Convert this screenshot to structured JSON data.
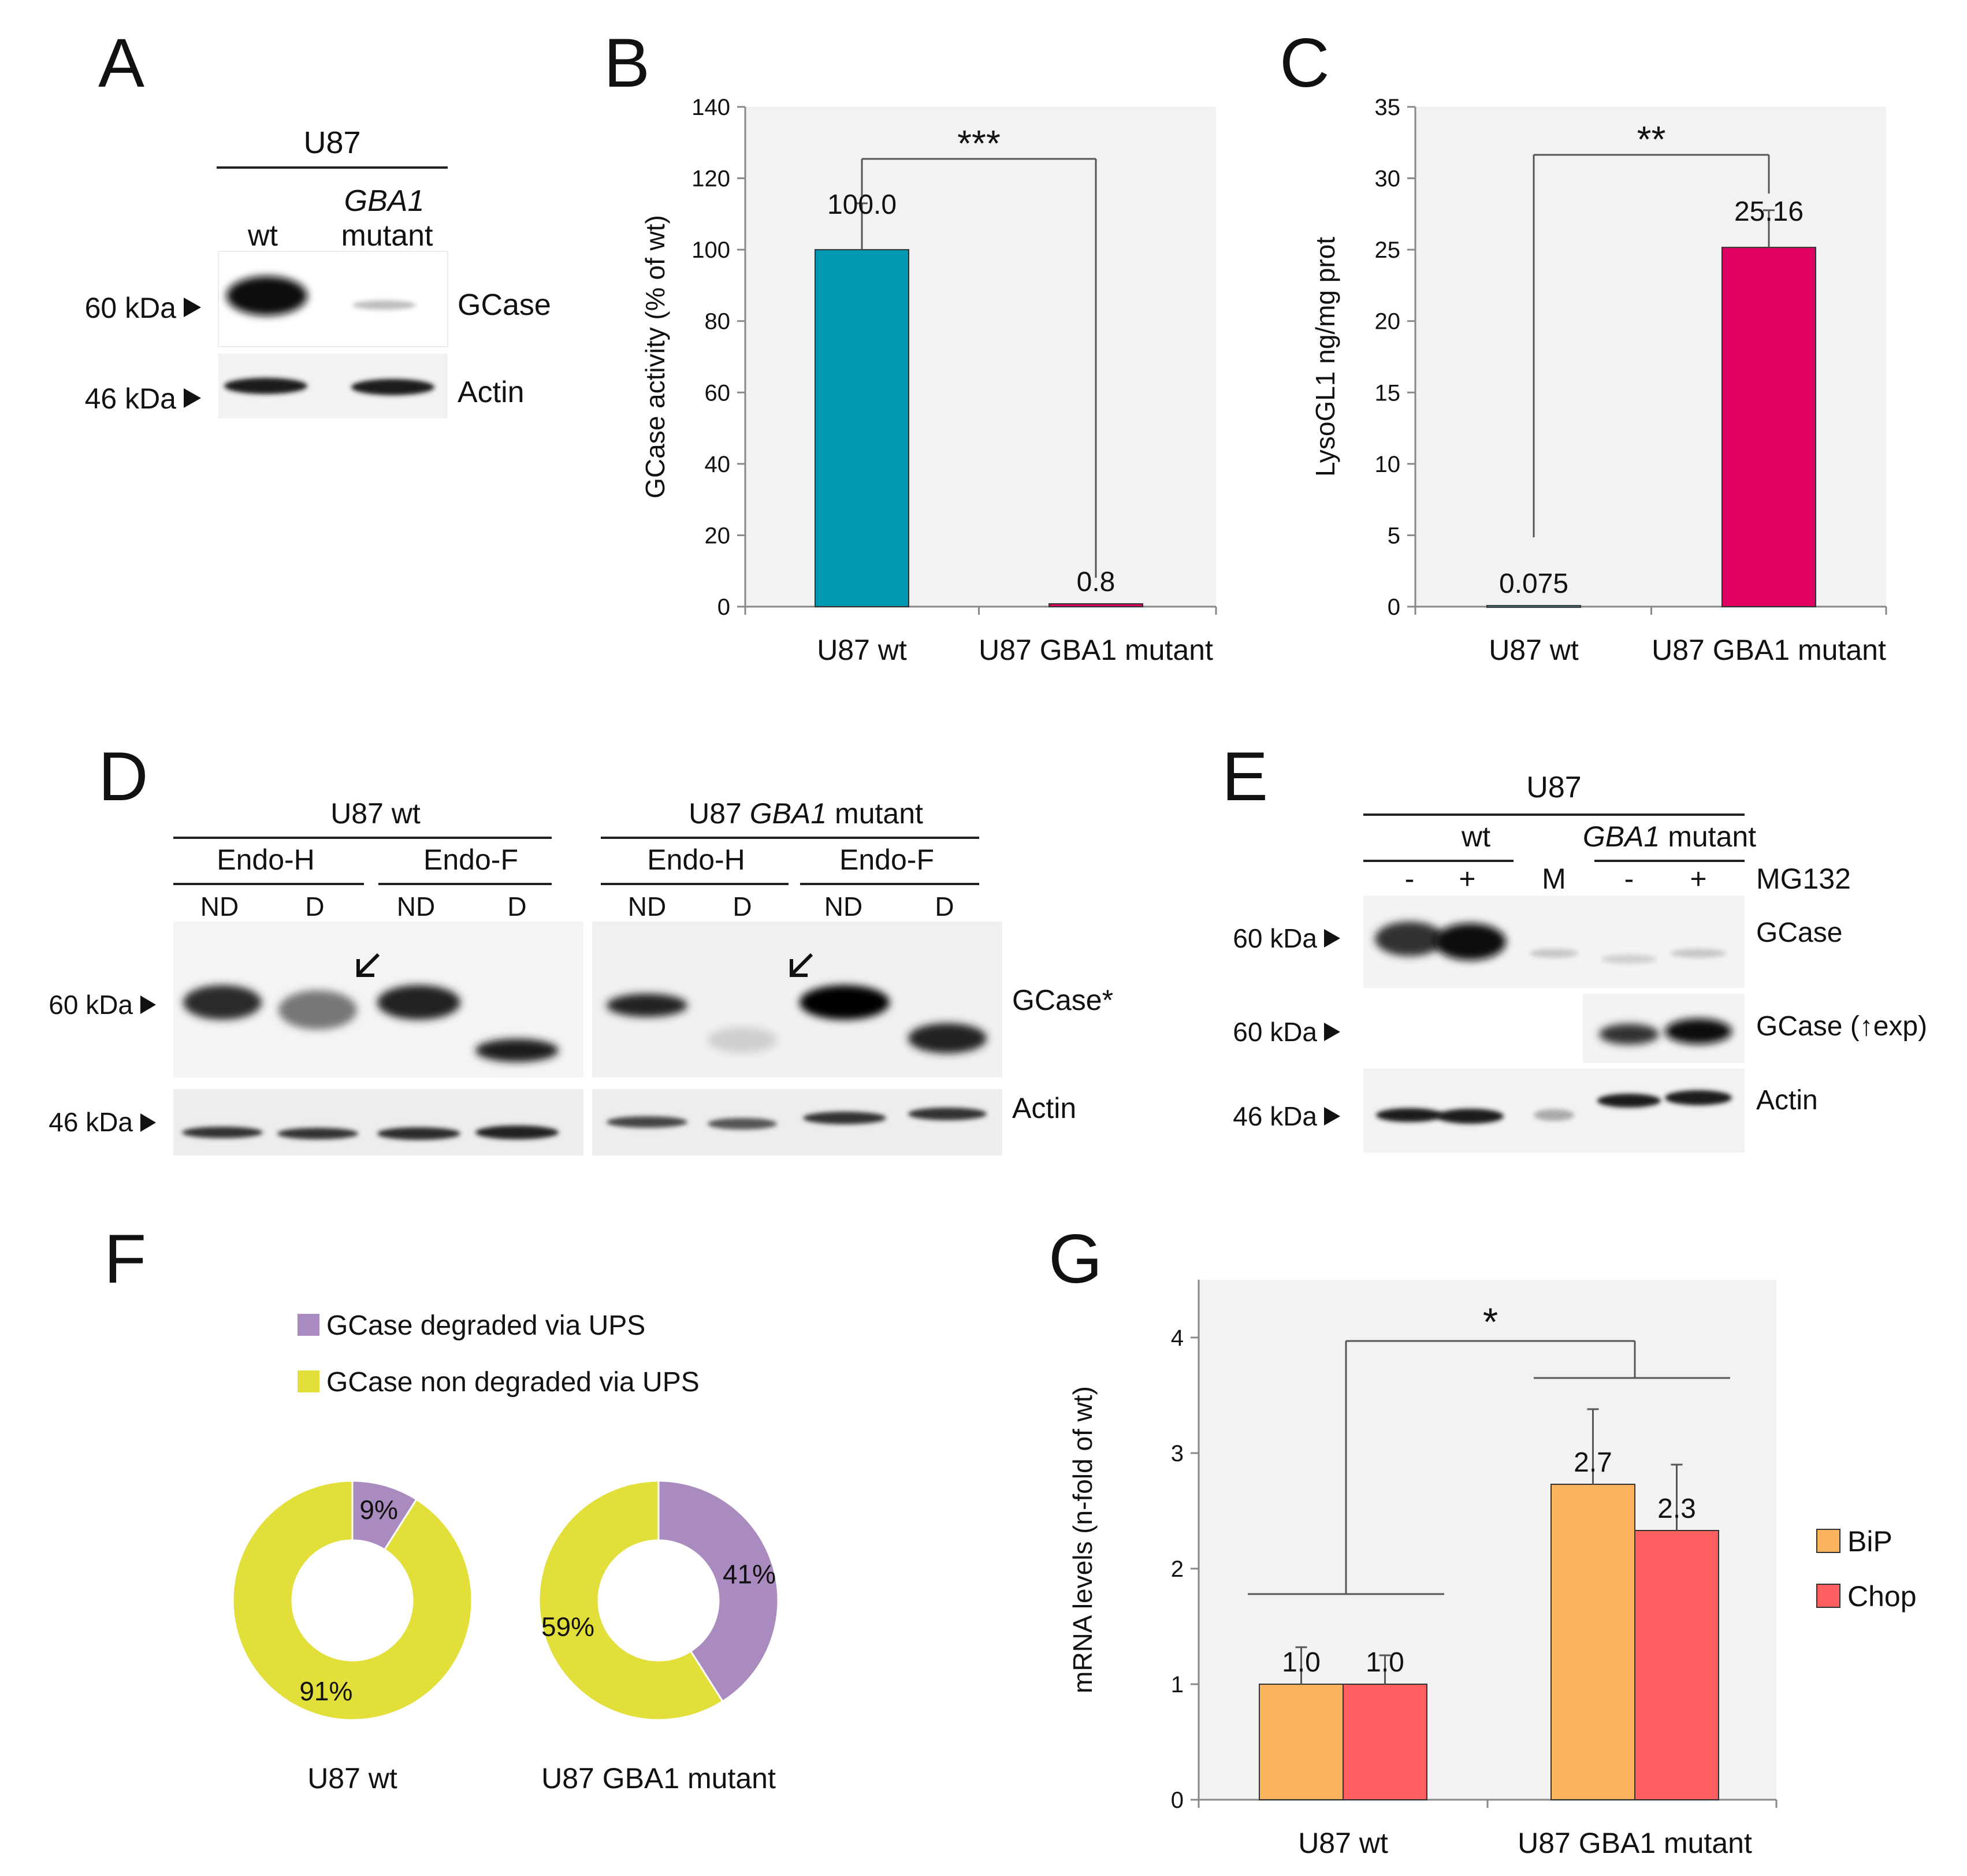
{
  "panels": {
    "A": {
      "letter": "A",
      "header": "U87",
      "lane_wt": "wt",
      "lane_mut_gene": "GBA1",
      "lane_mut": "mutant",
      "marker_60": "60 kDa",
      "marker_46": "46 kDa",
      "band_gcase": "GCase",
      "band_actin": "Actin"
    },
    "B": {
      "letter": "B",
      "significance": "***"
    },
    "C": {
      "letter": "C",
      "significance": "**"
    },
    "D": {
      "letter": "D",
      "group_wt": "U87 wt",
      "group_mut_prefix": "U87",
      "group_mut_gene": "GBA1",
      "group_mut_suffix": "mutant",
      "enzymes": [
        "Endo-H",
        "Endo-F",
        "Endo-H",
        "Endo-F"
      ],
      "lanes": [
        "ND",
        "D",
        "ND",
        "D",
        "ND",
        "D",
        "ND",
        "D"
      ],
      "marker_60": "60 kDa",
      "marker_46": "46 kDa",
      "band_gcase": "GCase*",
      "band_actin": "Actin"
    },
    "E": {
      "letter": "E",
      "header": "U87",
      "group_wt": "wt",
      "group_mut_gene": "GBA1",
      "group_mut": "mutant",
      "lanes": [
        "-",
        "+",
        "M",
        "-",
        "+"
      ],
      "treatment": "MG132",
      "marker_60a": "60 kDa",
      "marker_60b": "60 kDa",
      "marker_46": "46 kDa",
      "band_gcase": "GCase",
      "band_gcase_exp": "GCase (↑exp)",
      "band_actin": "Actin"
    },
    "F": {
      "letter": "F"
    },
    "G": {
      "letter": "G",
      "significance": "*"
    }
  },
  "chart_data": [
    {
      "id": "B",
      "type": "bar",
      "categories": [
        "U87 wt",
        "U87 GBA1 mutant"
      ],
      "values": [
        100.0,
        0.8
      ],
      "value_labels": [
        "100.0",
        "0.8"
      ],
      "errors": [
        13,
        0
      ],
      "colors": [
        "#0099b4",
        "#e0005f"
      ],
      "ylabel": "GCase activity (% of wt)",
      "ylim": [
        0,
        140
      ],
      "yticks": [
        0,
        20,
        40,
        60,
        80,
        100,
        120,
        140
      ]
    },
    {
      "id": "C",
      "type": "bar",
      "categories": [
        "U87 wt",
        "U87 GBA1 mutant"
      ],
      "values": [
        0.075,
        25.16
      ],
      "value_labels": [
        "0.075",
        "25.16"
      ],
      "errors": [
        0,
        2.6
      ],
      "colors": [
        "#3a8f86",
        "#e0005f"
      ],
      "ylabel": "LysoGL1 ng/mg prot",
      "ylim": [
        0,
        35
      ],
      "yticks": [
        0,
        5,
        10,
        15,
        20,
        25,
        30,
        35
      ]
    },
    {
      "id": "F",
      "type": "pie",
      "legend": [
        "GCase degraded via UPS",
        "GCase non degraded via UPS"
      ],
      "colors": [
        "#a98bbf",
        "#e3df3a"
      ],
      "donuts": [
        {
          "label": "U87 wt",
          "values": [
            9,
            91
          ],
          "value_labels": [
            "9%",
            "91%"
          ]
        },
        {
          "label": "U87 GBA1 mutant",
          "values": [
            41,
            59
          ],
          "value_labels": [
            "41%",
            "59%"
          ]
        }
      ]
    },
    {
      "id": "G",
      "type": "bar",
      "categories": [
        "U87 wt",
        "U87 GBA1 mutant"
      ],
      "series": [
        {
          "name": "BiP",
          "values": [
            1.0,
            2.73
          ],
          "value_labels": [
            "1.0",
            "2.7"
          ],
          "errors": [
            0.32,
            0.65
          ],
          "color": "#fbb45e"
        },
        {
          "name": "Chop",
          "values": [
            1.0,
            2.33
          ],
          "value_labels": [
            "1.0",
            "2.3"
          ],
          "errors": [
            0.25,
            0.57
          ],
          "color": "#ff5f5f"
        }
      ],
      "ylabel": "mRNA levels (n-fold of wt)",
      "ylim": [
        0,
        4.5
      ],
      "yticks": [
        0,
        1,
        2,
        3,
        4
      ],
      "legend_position": "right"
    }
  ]
}
